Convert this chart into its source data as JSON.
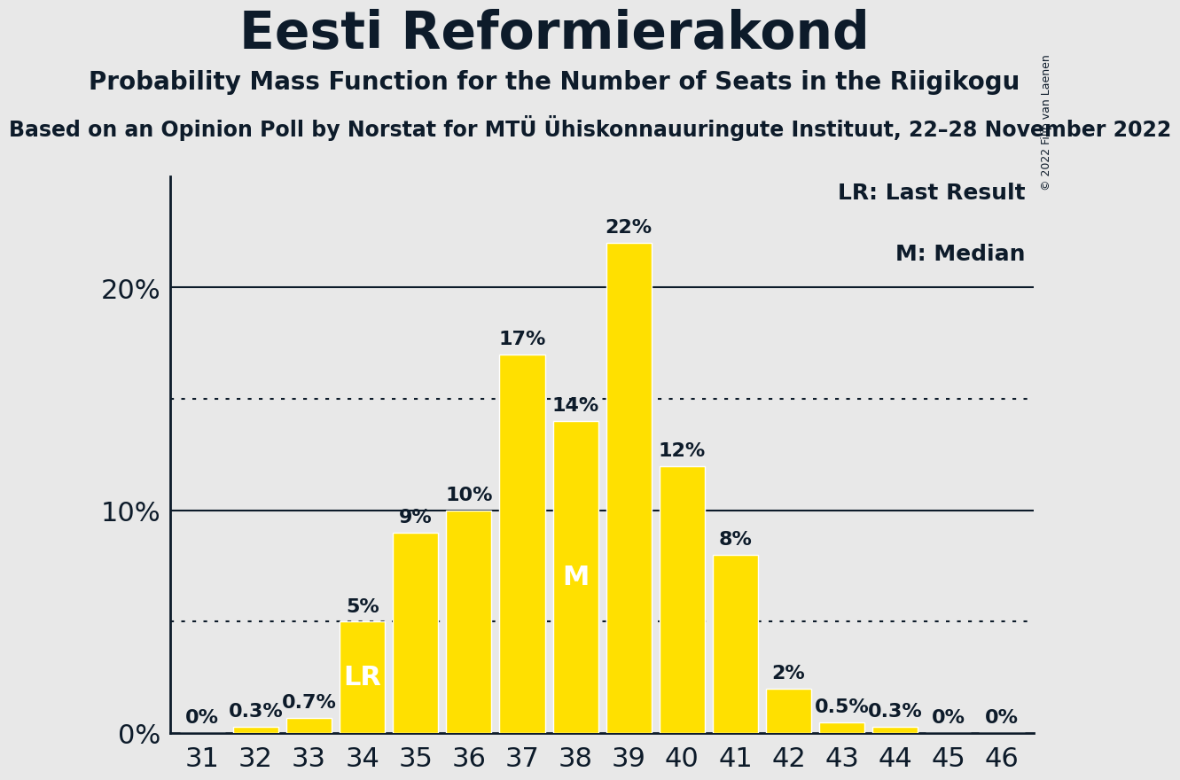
{
  "title": "Eesti Reformierakond",
  "subtitle": "Probability Mass Function for the Number of Seats in the Riigikogu",
  "source_line": "Based on an Opinion Poll by Norstat for MTÜ Ühiskonnauuringute Instituut, 22–28 November 2022",
  "copyright": "© 2022 Filip van Laenen",
  "seats": [
    31,
    32,
    33,
    34,
    35,
    36,
    37,
    38,
    39,
    40,
    41,
    42,
    43,
    44,
    45,
    46
  ],
  "probabilities": [
    0.0,
    0.3,
    0.7,
    5.0,
    9.0,
    10.0,
    17.0,
    14.0,
    22.0,
    12.0,
    8.0,
    2.0,
    0.5,
    0.3,
    0.0,
    0.0
  ],
  "bar_color": "#FFE000",
  "background_color": "#E8E8E8",
  "text_color": "#0D1B2A",
  "last_result_seat": 34,
  "median_seat": 38,
  "yticks": [
    0,
    10,
    20
  ],
  "solid_lines": [
    10,
    20
  ],
  "dotted_lines": [
    5,
    15
  ],
  "ylim_max": 25,
  "ylabel_fontsize": 22,
  "xlabel_fontsize": 22,
  "title_fontsize": 42,
  "subtitle_fontsize": 20,
  "source_fontsize": 17,
  "bar_label_fontsize": 16,
  "lr_label": "LR",
  "m_label": "M",
  "lr_legend": "LR: Last Result",
  "m_legend": "M: Median",
  "legend_fontsize": 18,
  "inside_label_fontsize": 22
}
